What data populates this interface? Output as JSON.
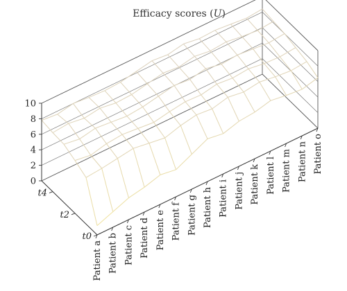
{
  "chart_data": {
    "type": "surface",
    "title_main": "Efficacy scores (",
    "title_var": "U",
    "title_close": ")",
    "categories": [
      "Patient a",
      "Patient b",
      "Patient c",
      "Patient d",
      "Patient e",
      "Patient f",
      "Patient g",
      "Patient h",
      "Patient i",
      "Patient j",
      "Patient k",
      "Patient l",
      "Patient m",
      "Patient n",
      "Patient o"
    ],
    "time_labels": [
      "t0",
      "t2",
      "t4"
    ],
    "time_values": [
      0,
      1,
      2,
      3,
      4,
      5
    ],
    "y_ticks": [
      "0",
      "2",
      "4",
      "6",
      "8",
      "10"
    ],
    "ylim": [
      0,
      10
    ],
    "grid": true,
    "colors": {
      "surface_low": "#f2e6a0",
      "surface_high": "#d8c8a8",
      "frame": "#555555"
    },
    "series": [
      {
        "values": [
          1.2,
          2.0,
          2.8,
          3.2,
          3.8,
          3.5,
          4.5,
          5.5,
          5.2,
          5.8,
          6.0,
          6.5,
          6.2,
          6.0,
          6.5
        ]
      },
      {
        "values": [
          6.0,
          6.2,
          6.5,
          6.8,
          6.5,
          6.2,
          6.8,
          7.2,
          7.0,
          7.5,
          7.2,
          7.5,
          7.2,
          7.0,
          7.2
        ]
      },
      {
        "values": [
          6.8,
          6.5,
          7.0,
          7.2,
          7.0,
          6.8,
          7.2,
          7.5,
          7.4,
          7.8,
          7.6,
          7.8,
          7.5,
          7.4,
          7.6
        ]
      },
      {
        "values": [
          7.5,
          7.2,
          7.6,
          7.4,
          7.2,
          7.4,
          7.8,
          8.2,
          8.0,
          8.4,
          8.0,
          8.2,
          8.0,
          7.8,
          8.0
        ]
      },
      {
        "values": [
          7.6,
          7.8,
          7.5,
          7.8,
          7.5,
          7.6,
          8.0,
          8.4,
          8.2,
          8.6,
          8.3,
          8.5,
          8.2,
          8.0,
          8.2
        ]
      },
      {
        "values": [
          7.8,
          7.6,
          8.0,
          7.8,
          7.7,
          7.8,
          8.2,
          8.6,
          8.4,
          8.8,
          8.5,
          8.6,
          8.4,
          8.2,
          8.4
        ]
      }
    ]
  }
}
